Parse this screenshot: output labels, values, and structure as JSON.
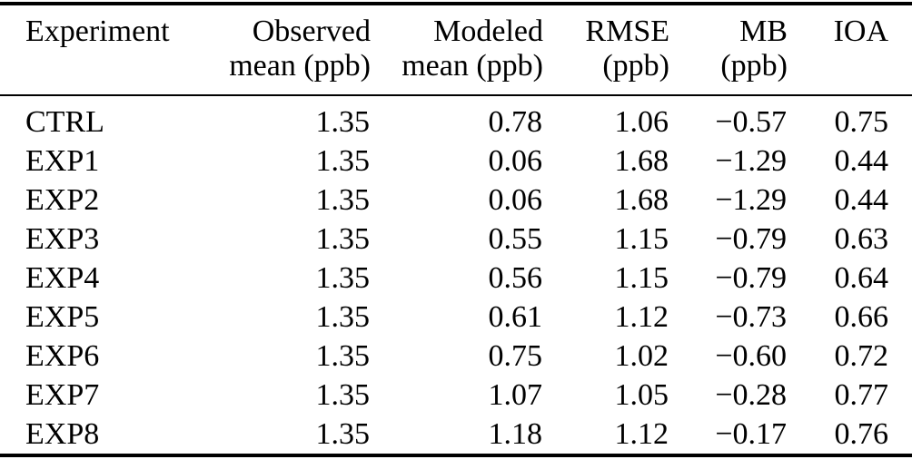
{
  "table": {
    "columns": [
      {
        "line1": "Experiment",
        "line2": ""
      },
      {
        "line1": "Observed",
        "line2": "mean (ppb)"
      },
      {
        "line1": "Modeled",
        "line2": "mean (ppb)"
      },
      {
        "line1": "RMSE",
        "line2": "(ppb)"
      },
      {
        "line1": "MB",
        "line2": "(ppb)"
      },
      {
        "line1": "IOA",
        "line2": ""
      }
    ],
    "rows": [
      [
        "CTRL",
        "1.35",
        "0.78",
        "1.06",
        "−0.57",
        "0.75"
      ],
      [
        "EXP1",
        "1.35",
        "0.06",
        "1.68",
        "−1.29",
        "0.44"
      ],
      [
        "EXP2",
        "1.35",
        "0.06",
        "1.68",
        "−1.29",
        "0.44"
      ],
      [
        "EXP3",
        "1.35",
        "0.55",
        "1.15",
        "−0.79",
        "0.63"
      ],
      [
        "EXP4",
        "1.35",
        "0.56",
        "1.15",
        "−0.79",
        "0.64"
      ],
      [
        "EXP5",
        "1.35",
        "0.61",
        "1.12",
        "−0.73",
        "0.66"
      ],
      [
        "EXP6",
        "1.35",
        "0.75",
        "1.02",
        "−0.60",
        "0.72"
      ],
      [
        "EXP7",
        "1.35",
        "1.07",
        "1.05",
        "−0.28",
        "0.77"
      ],
      [
        "EXP8",
        "1.35",
        "1.18",
        "1.12",
        "−0.17",
        "0.76"
      ]
    ]
  },
  "colors": {
    "text": "#000000",
    "background": "#ffffff",
    "rule": "#000000"
  }
}
